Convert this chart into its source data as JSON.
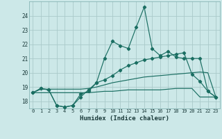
{
  "xlabel": "Humidex (Indice chaleur)",
  "background_color": "#cce8e8",
  "grid_color": "#aacaca",
  "line_color": "#1a6e62",
  "xlim": [
    -0.5,
    23.5
  ],
  "ylim": [
    17.5,
    25.0
  ],
  "yticks": [
    18,
    19,
    20,
    21,
    22,
    23,
    24
  ],
  "xticks": [
    0,
    1,
    2,
    3,
    4,
    5,
    6,
    7,
    8,
    9,
    10,
    11,
    12,
    13,
    14,
    15,
    16,
    17,
    18,
    19,
    20,
    21,
    22,
    23
  ],
  "line1_x": [
    0,
    1,
    2,
    3,
    4,
    5,
    6,
    7,
    8,
    9,
    10,
    11,
    12,
    13,
    14,
    15,
    16,
    17,
    18,
    19,
    20,
    21,
    22,
    23
  ],
  "line1_y": [
    18.6,
    18.9,
    18.8,
    17.7,
    17.6,
    17.7,
    18.5,
    18.7,
    19.3,
    21.0,
    22.2,
    21.9,
    21.7,
    23.2,
    24.6,
    21.7,
    21.2,
    21.5,
    21.1,
    21.0,
    21.0,
    21.0,
    18.7,
    18.3
  ],
  "line2_x": [
    0,
    1,
    2,
    3,
    4,
    5,
    6,
    7,
    8,
    9,
    10,
    11,
    12,
    13,
    14,
    15,
    16,
    17,
    18,
    19,
    20,
    21,
    22,
    23
  ],
  "line2_y": [
    18.6,
    18.9,
    18.8,
    17.7,
    17.6,
    17.7,
    18.3,
    18.8,
    19.3,
    19.5,
    19.8,
    20.2,
    20.5,
    20.7,
    20.9,
    21.0,
    21.1,
    21.2,
    21.3,
    21.4,
    19.9,
    19.4,
    18.7,
    18.3
  ],
  "line3_x": [
    0,
    1,
    2,
    3,
    4,
    5,
    6,
    7,
    8,
    9,
    10,
    11,
    12,
    13,
    14,
    15,
    16,
    17,
    18,
    19,
    20,
    21,
    22,
    23
  ],
  "line3_y": [
    18.6,
    18.85,
    18.85,
    18.85,
    18.85,
    18.85,
    18.85,
    18.9,
    19.0,
    19.15,
    19.3,
    19.4,
    19.5,
    19.6,
    19.7,
    19.75,
    19.8,
    19.85,
    19.9,
    19.95,
    20.0,
    20.05,
    20.0,
    18.3
  ],
  "line4_x": [
    0,
    1,
    2,
    3,
    4,
    5,
    6,
    7,
    8,
    9,
    10,
    11,
    12,
    13,
    14,
    15,
    16,
    17,
    18,
    19,
    20,
    21,
    22,
    23
  ],
  "line4_y": [
    18.6,
    18.6,
    18.6,
    18.6,
    18.6,
    18.6,
    18.6,
    18.6,
    18.65,
    18.7,
    18.7,
    18.75,
    18.8,
    18.8,
    18.8,
    18.8,
    18.8,
    18.85,
    18.9,
    18.9,
    18.9,
    18.3,
    18.3,
    18.3
  ]
}
